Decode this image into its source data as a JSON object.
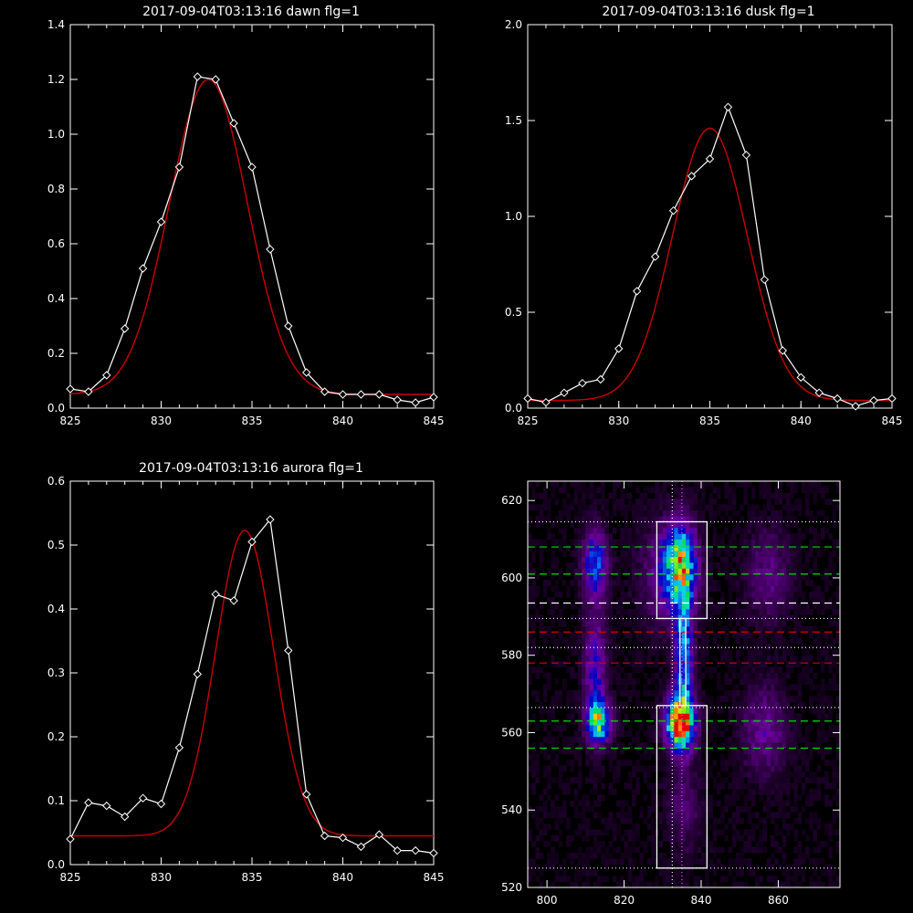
{
  "chart_data": [
    {
      "type": "line",
      "title": "2017-09-04T03:13:16 dawn flg=1",
      "xlim": [
        825,
        845
      ],
      "ylim": [
        0,
        1.4
      ],
      "xticks": [
        825,
        830,
        835,
        840,
        845
      ],
      "yticks": [
        0.0,
        0.2,
        0.4,
        0.6,
        0.8,
        1.0,
        1.2,
        1.4
      ],
      "xticklabels": [
        "825",
        "830",
        "835",
        "840",
        "845"
      ],
      "yticklabels": [
        "0.0",
        "0.2",
        "0.4",
        "0.6",
        "0.8",
        "1.0",
        "1.2",
        "1.4"
      ],
      "series": [
        {
          "color": "#ffffff",
          "markers": "diamond",
          "x": [
            825,
            826,
            827,
            828,
            829,
            830,
            831,
            832,
            833,
            834,
            835,
            836,
            837,
            838,
            839,
            840,
            841,
            842,
            843,
            844,
            845
          ],
          "y": [
            0.07,
            0.06,
            0.12,
            0.29,
            0.51,
            0.68,
            0.88,
            1.21,
            1.2,
            1.04,
            0.88,
            0.58,
            0.3,
            0.13,
            0.06,
            0.05,
            0.05,
            0.05,
            0.03,
            0.02,
            0.04
          ]
        },
        {
          "color": "#cc0000",
          "style": "gaussian_fit",
          "amplitude": 1.15,
          "center": 832.6,
          "sigma": 2.15,
          "offset": 0.05
        }
      ]
    },
    {
      "type": "line",
      "title": "2017-09-04T03:13:16 dusk flg=1",
      "xlim": [
        825,
        845
      ],
      "ylim": [
        0,
        2.0
      ],
      "xticks": [
        825,
        830,
        835,
        840,
        845
      ],
      "yticks": [
        0.0,
        0.5,
        1.0,
        1.5,
        2.0
      ],
      "xticklabels": [
        "825",
        "830",
        "835",
        "840",
        "845"
      ],
      "yticklabels": [
        "0.0",
        "0.5",
        "1.0",
        "1.5",
        "2.0"
      ],
      "series": [
        {
          "color": "#ffffff",
          "markers": "diamond",
          "x": [
            825,
            826,
            827,
            828,
            829,
            830,
            831,
            832,
            833,
            834,
            835,
            836,
            837,
            838,
            839,
            840,
            841,
            842,
            843,
            844,
            845
          ],
          "y": [
            0.05,
            0.03,
            0.08,
            0.13,
            0.15,
            0.31,
            0.61,
            0.79,
            1.03,
            1.21,
            1.3,
            1.57,
            1.32,
            0.67,
            0.3,
            0.16,
            0.08,
            0.05,
            0.01,
            0.04,
            0.05
          ]
        },
        {
          "color": "#cc0000",
          "style": "gaussian_fit",
          "amplitude": 1.42,
          "center": 835.0,
          "sigma": 2.05,
          "offset": 0.04
        }
      ]
    },
    {
      "type": "line",
      "title": "2017-09-04T03:13:16 aurora flg=1",
      "xlim": [
        825,
        845
      ],
      "ylim": [
        0,
        0.6
      ],
      "xticks": [
        825,
        830,
        835,
        840,
        845
      ],
      "yticks": [
        0.0,
        0.1,
        0.2,
        0.3,
        0.4,
        0.5,
        0.6
      ],
      "xticklabels": [
        "825",
        "830",
        "835",
        "840",
        "845"
      ],
      "yticklabels": [
        "0.0",
        "0.1",
        "0.2",
        "0.3",
        "0.4",
        "0.5",
        "0.6"
      ],
      "series": [
        {
          "color": "#ffffff",
          "markers": "diamond",
          "x": [
            825,
            826,
            827,
            828,
            829,
            830,
            831,
            832,
            833,
            834,
            835,
            836,
            837,
            838,
            839,
            840,
            841,
            842,
            843,
            844,
            845
          ],
          "y": [
            0.04,
            0.097,
            0.092,
            0.075,
            0.104,
            0.095,
            0.183,
            0.298,
            0.423,
            0.413,
            0.505,
            0.54,
            0.335,
            0.11,
            0.045,
            0.042,
            0.028,
            0.047,
            0.022,
            0.022,
            0.018
          ]
        },
        {
          "color": "#cc0000",
          "style": "gaussian_fit",
          "amplitude": 0.478,
          "center": 834.6,
          "sigma": 1.6,
          "offset": 0.045
        }
      ]
    },
    {
      "type": "heatmap",
      "title": "",
      "xlim": [
        795,
        876
      ],
      "ylim": [
        520,
        625
      ],
      "xticks": [
        800,
        820,
        840,
        860
      ],
      "yticks": [
        520,
        540,
        560,
        580,
        600,
        620
      ],
      "xticklabels": [
        "800",
        "820",
        "840",
        "860"
      ],
      "yticklabels": [
        "520",
        "540",
        "560",
        "580",
        "600",
        "620"
      ],
      "colormap": "rainbow_on_black",
      "emission_blobs": [
        {
          "x": 813,
          "y": 562,
          "sx": 2.2,
          "sy": 3.5,
          "a": 0.62
        },
        {
          "x": 812,
          "y": 603,
          "sx": 2.2,
          "sy": 6.0,
          "a": 0.42
        },
        {
          "x": 812,
          "y": 575,
          "sx": 2.0,
          "sy": 10.0,
          "a": 0.3
        },
        {
          "x": 834,
          "y": 562,
          "sx": 2.5,
          "sy": 4.5,
          "a": 1.0
        },
        {
          "x": 834,
          "y": 603,
          "sx": 2.8,
          "sy": 7.0,
          "a": 0.6
        },
        {
          "x": 835,
          "y": 579,
          "sx": 1.6,
          "sy": 13.0,
          "a": 0.5
        },
        {
          "x": 831,
          "y": 600,
          "sx": 5.0,
          "sy": 9.0,
          "a": 0.22
        },
        {
          "x": 856,
          "y": 560,
          "sx": 4.0,
          "sy": 8.0,
          "a": 0.2
        },
        {
          "x": 857,
          "y": 600,
          "sx": 4.0,
          "sy": 8.0,
          "a": 0.17
        },
        {
          "x": 835,
          "y": 540,
          "sx": 3.0,
          "sy": 8.0,
          "a": 0.13
        }
      ],
      "boxes": [
        {
          "x0": 828.5,
          "x1": 841.5,
          "y0": 589.5,
          "y1": 614.5,
          "color": "#ffffff"
        },
        {
          "x0": 828.5,
          "x1": 841.5,
          "y0": 525.0,
          "y1": 567.0,
          "color": "#ffffff"
        },
        {
          "x0": 834.5,
          "x1": 836.0,
          "y0": 567.0,
          "y1": 589.5,
          "color": "#ffffff"
        }
      ],
      "hlines": [
        {
          "y": 614.5,
          "color": "#ffffff",
          "style": "dotted"
        },
        {
          "y": 608.0,
          "color": "#00dd00",
          "style": "dashed"
        },
        {
          "y": 601.0,
          "color": "#00dd00",
          "style": "dashed"
        },
        {
          "y": 593.5,
          "color": "#ffffff",
          "style": "dashed"
        },
        {
          "y": 589.5,
          "color": "#ffffff",
          "style": "dotted"
        },
        {
          "y": 586.0,
          "color": "#dd0000",
          "style": "dashed"
        },
        {
          "y": 582.0,
          "color": "#ffffff",
          "style": "dotted"
        },
        {
          "y": 578.0,
          "color": "#dd0000",
          "style": "dashed"
        },
        {
          "y": 566.5,
          "color": "#ffffff",
          "style": "dotted"
        },
        {
          "y": 563.0,
          "color": "#00dd00",
          "style": "dashed"
        },
        {
          "y": 556.0,
          "color": "#00dd00",
          "style": "dashed"
        },
        {
          "y": 525.0,
          "color": "#ffffff",
          "style": "dotted"
        }
      ],
      "vlines": [
        {
          "x": 832.5,
          "color": "#ffffff",
          "style": "dotted"
        },
        {
          "x": 835.0,
          "color": "#ff55ff",
          "style": "dotted"
        }
      ]
    }
  ]
}
